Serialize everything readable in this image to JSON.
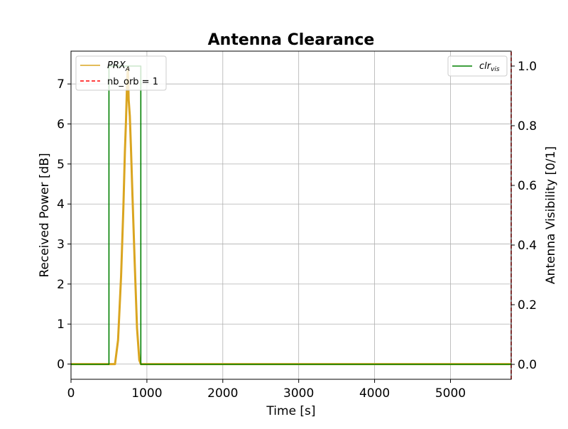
{
  "chart_data": {
    "type": "line",
    "title": "Antenna Clearance",
    "xlabel": "Time [s]",
    "ylabel": "Received Power [dB]",
    "y2label": "Antenna Visibility [0/1]",
    "xlim": [
      0,
      5800
    ],
    "ylim": [
      -0.38,
      7.82
    ],
    "y2lim": [
      -0.05,
      1.05
    ],
    "xticks": [
      0,
      1000,
      2000,
      3000,
      4000,
      5000
    ],
    "yticks": [
      0,
      1,
      2,
      3,
      4,
      5,
      6,
      7
    ],
    "y2ticks": [
      0.0,
      0.2,
      0.4,
      0.6,
      0.8,
      1.0
    ],
    "xtick_labels": [
      "0",
      "1000",
      "2000",
      "3000",
      "4000",
      "5000"
    ],
    "ytick_labels": [
      "0",
      "1",
      "2",
      "3",
      "4",
      "5",
      "6",
      "7"
    ],
    "y2tick_labels": [
      "0.0",
      "0.2",
      "0.4",
      "0.6",
      "0.8",
      "1.0"
    ],
    "grid": true,
    "series": [
      {
        "name": "PRX_A",
        "legend_main": "PRX",
        "legend_sub": "A",
        "axis": "left",
        "color": "#DAA520",
        "style": "solid",
        "x": [
          0,
          580,
          620,
          660,
          690,
          710,
          725,
          740,
          750,
          760,
          775,
          790,
          810,
          840,
          870,
          900,
          920,
          5800
        ],
        "y": [
          0,
          0,
          0.6,
          2.2,
          3.9,
          5.3,
          6.1,
          7.1,
          7.4,
          6.6,
          6.2,
          5.4,
          4.2,
          2.5,
          0.9,
          0.1,
          0,
          0
        ]
      },
      {
        "name": "nb_orb = 1",
        "axis": "left",
        "color": "#FF0000",
        "style": "dashed",
        "x": [
          5800,
          5800
        ],
        "y": [
          -0.38,
          7.82
        ]
      },
      {
        "name": "clr_vis",
        "legend_main": "clr",
        "legend_sub": "vis",
        "axis": "right",
        "color": "#008000",
        "style": "solid",
        "x": [
          0,
          500,
          500,
          920,
          920,
          5800
        ],
        "y": [
          0,
          0,
          1,
          1,
          0,
          0
        ]
      }
    ],
    "legend_left_placement": "upper-left",
    "legend_right_placement": "upper-right"
  }
}
